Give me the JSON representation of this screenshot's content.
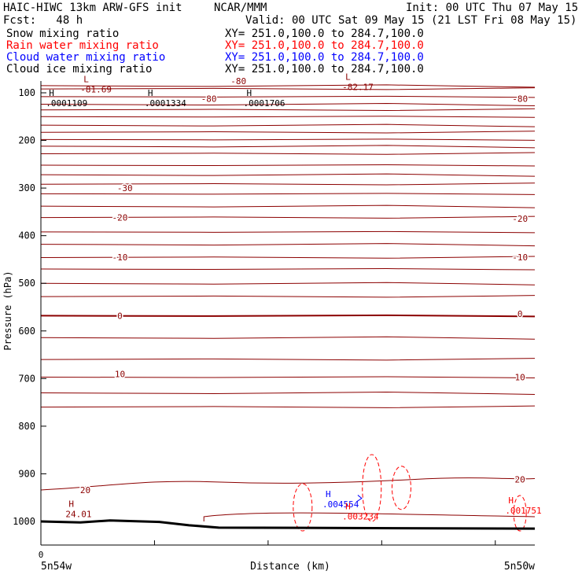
{
  "header": {
    "title": "HAIC-HIWC 13km ARW-GFS init",
    "org": "NCAR/MMM",
    "init": "Init: 00 UTC Thu 07 May 15",
    "fcst": "Fcst:   48 h",
    "valid": "Valid: 00 UTC Sat 09 May 15 (21 LST Fri 08 May 15)"
  },
  "legend": [
    {
      "label": "Snow mixing ratio",
      "xy": "XY= 251.0,100.0 to 284.7,100.0",
      "color": "#000000"
    },
    {
      "label": "Rain water mixing ratio",
      "xy": "XY= 251.0,100.0 to 284.7,100.0",
      "color": "#ff0000"
    },
    {
      "label": "Cloud water mixing ratio",
      "xy": "XY= 251.0,100.0 to 284.7,100.0",
      "color": "#0000ff"
    },
    {
      "label": "Cloud ice mixing ratio",
      "xy": "XY= 251.0,100.0 to 284.7,100.0",
      "color": "#000000"
    }
  ],
  "chart_data": {
    "type": "line",
    "ylabel": "Pressure (hPa)",
    "xlabel": "Distance (km)",
    "x_origin_label": "0",
    "x_left_label": "5n54w",
    "x_right_label": "5n50w",
    "yticks": [
      100,
      200,
      300,
      400,
      500,
      600,
      700,
      800,
      900,
      1000
    ],
    "ylim": [
      100,
      1050
    ],
    "xlim": [
      0,
      100
    ],
    "isotherm_color": "#8b0000",
    "isotherm_labels": [
      {
        "text": "-80",
        "x": 40,
        "p": 75
      },
      {
        "text": "-80",
        "x": 34,
        "p": 112
      },
      {
        "text": "-80",
        "x": 97,
        "p": 112
      },
      {
        "text": "-30",
        "x": 17,
        "p": 300
      },
      {
        "text": "-20",
        "x": 16,
        "p": 362
      },
      {
        "text": "-20",
        "x": 97,
        "p": 364
      },
      {
        "text": "-10",
        "x": 16,
        "p": 445
      },
      {
        "text": "-10",
        "x": 97,
        "p": 445
      },
      {
        "text": "0",
        "x": 16,
        "p": 568
      },
      {
        "text": "0",
        "x": 97,
        "p": 564
      },
      {
        "text": "10",
        "x": 16,
        "p": 690
      },
      {
        "text": "10",
        "x": 97,
        "p": 697
      },
      {
        "text": "20",
        "x": 9,
        "p": 934
      },
      {
        "text": "20",
        "x": 97,
        "p": 912
      }
    ],
    "extrema": [
      {
        "mark": "L",
        "value": "-81.69",
        "x": 8,
        "p": 91,
        "color": "#8b0000"
      },
      {
        "mark": "L",
        "value": "-82.17",
        "x": 61,
        "p": 86,
        "color": "#8b0000"
      },
      {
        "mark": "H",
        "value": ".0001109",
        "x": 1,
        "p": 120,
        "color": "#000000"
      },
      {
        "mark": "H",
        "value": ".0001334",
        "x": 21,
        "p": 120,
        "color": "#000000"
      },
      {
        "mark": "H",
        "value": ".0001706",
        "x": 41,
        "p": 120,
        "color": "#000000"
      },
      {
        "mark": "H",
        "value": "24.01",
        "x": 5,
        "p": 983,
        "color": "#8b0000"
      },
      {
        "mark": "H",
        "value": ".004554",
        "x": 57,
        "p": 962,
        "color": "#0000ff"
      },
      {
        "mark": "H",
        "value": ".003234",
        "x": 61,
        "p": 988,
        "color": "#ff0000"
      },
      {
        "mark": "H",
        "value": ".001751",
        "x": 94,
        "p": 975,
        "color": "#ff0000"
      }
    ]
  }
}
